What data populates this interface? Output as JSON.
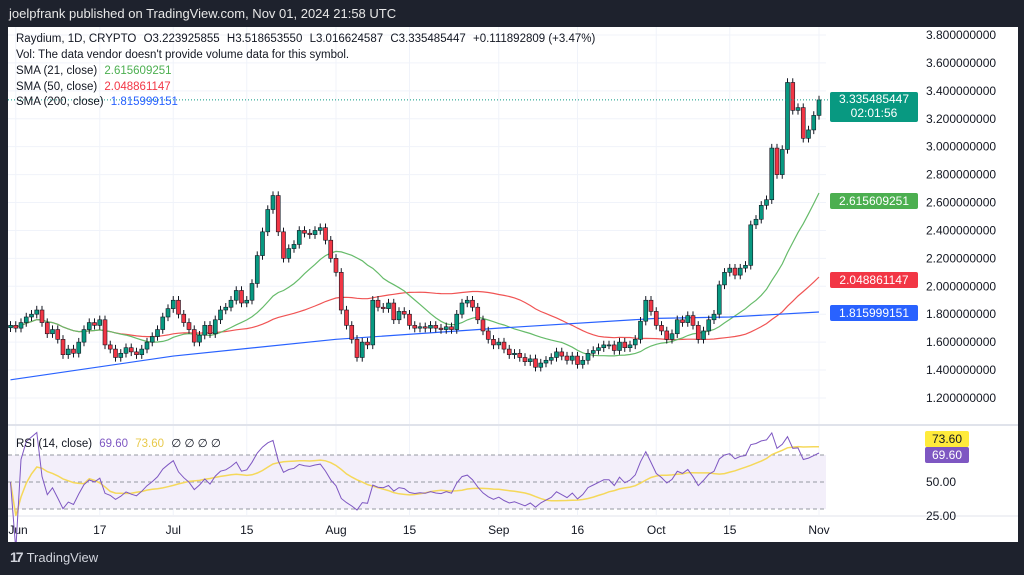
{
  "topbar": {
    "published": "joelpfrank published on TradingView.com, Nov 01, 2024 21:58 UTC"
  },
  "legend": {
    "symbol": "Raydium, 1D, CRYPTO",
    "open": "O3.223925855",
    "high": "H3.518653550",
    "low": "L3.016624587",
    "close": "C3.335485447",
    "change": "+0.111892809 (+3.47%)",
    "vol_note": "Vol: The data vendor doesn't provide volume data for this symbol.",
    "sma21": {
      "label": "SMA (21, close)",
      "value": "2.615609251",
      "color": "#4caf50"
    },
    "sma50": {
      "label": "SMA (50, close)",
      "value": "2.048861147",
      "color": "#f23645"
    },
    "sma200": {
      "label": "SMA (200, close)",
      "value": "1.815999151",
      "color": "#2962ff"
    }
  },
  "price_axis": {
    "ticks": [
      "3.800000000",
      "3.600000000",
      "3.400000000",
      "3.200000000",
      "3.000000000",
      "2.800000000",
      "2.600000000",
      "2.400000000",
      "2.200000000",
      "2.000000000",
      "1.800000000",
      "1.600000000",
      "1.400000000",
      "1.200000000"
    ],
    "current_price": "3.335485447",
    "countdown": "02:01:56",
    "sma21_tag": "2.615609251",
    "sma50_tag": "2.048861147",
    "sma200_tag": "1.815999151"
  },
  "rsi": {
    "label": "RSI (14, close)",
    "value": "69.60",
    "ma_value": "73.60",
    "extras": "∅ ∅ ∅ ∅",
    "ticks": [
      "50.00",
      "25.00"
    ],
    "color": "#7e57c2",
    "ma_color": "#f5d85a"
  },
  "time_axis": [
    {
      "label": "Jun",
      "date": "2024-06-01"
    },
    {
      "label": "17",
      "date": "2024-06-17"
    },
    {
      "label": "Jul",
      "date": "2024-07-01"
    },
    {
      "label": "15",
      "date": "2024-07-15"
    },
    {
      "label": "Aug",
      "date": "2024-08-01"
    },
    {
      "label": "15",
      "date": "2024-08-15"
    },
    {
      "label": "Sep",
      "date": "2024-09-01"
    },
    {
      "label": "16",
      "date": "2024-09-16"
    },
    {
      "label": "Oct",
      "date": "2024-10-01"
    },
    {
      "label": "15",
      "date": "2024-10-15"
    },
    {
      "label": "Nov",
      "date": "2024-11-01"
    }
  ],
  "colors": {
    "up": "#089981",
    "down": "#f23645",
    "background": "#1e222d"
  },
  "chart_data": {
    "type": "candlestick",
    "symbol": "Raydium",
    "interval": "1D",
    "ylim": [
      1.1,
      3.85
    ],
    "daily_close": [
      {
        "month": "2024-05",
        "first_day": 31,
        "close": [
          1.72
        ]
      },
      {
        "month": "2024-06",
        "first_day": 1,
        "close": [
          1.7,
          1.74,
          1.78,
          1.8,
          1.83,
          1.74,
          1.66,
          1.69,
          1.62,
          1.51,
          1.55,
          1.52,
          1.6,
          1.69,
          1.74,
          1.72,
          1.76,
          1.58,
          1.55,
          1.49,
          1.52,
          1.56,
          1.53,
          1.51,
          1.55,
          1.6,
          1.64,
          1.69,
          1.78,
          1.84
        ]
      },
      {
        "month": "2024-07",
        "first_day": 1,
        "close": [
          1.9,
          1.8,
          1.74,
          1.69,
          1.6,
          1.65,
          1.72,
          1.66,
          1.76,
          1.83,
          1.85,
          1.9,
          1.97,
          1.88,
          1.9,
          2.02,
          2.22,
          2.39,
          2.55,
          2.65,
          2.39,
          2.2,
          2.27,
          2.3,
          2.4,
          2.38,
          2.37,
          2.4,
          2.42,
          2.33,
          2.2
        ]
      },
      {
        "month": "2024-08",
        "first_day": 1,
        "close": [
          2.1,
          1.83,
          1.72,
          1.62,
          1.49,
          1.6,
          1.58,
          1.9,
          1.85,
          1.84,
          1.88,
          1.76,
          1.82,
          1.8,
          1.72,
          1.7,
          1.71,
          1.7,
          1.72,
          1.7,
          1.69,
          1.71,
          1.69,
          1.8,
          1.88,
          1.9,
          1.85,
          1.76,
          1.68,
          1.62,
          1.58
        ]
      },
      {
        "month": "2024-09",
        "first_day": 1,
        "close": [
          1.6,
          1.55,
          1.51,
          1.52,
          1.49,
          1.46,
          1.48,
          1.42,
          1.45,
          1.47,
          1.49,
          1.53,
          1.5,
          1.47,
          1.5,
          1.44,
          1.47,
          1.52,
          1.54,
          1.56,
          1.58,
          1.58,
          1.54,
          1.6,
          1.56,
          1.58,
          1.62,
          1.75,
          1.9,
          1.82
        ]
      },
      {
        "month": "2024-10",
        "first_day": 1,
        "close": [
          1.72,
          1.68,
          1.62,
          1.66,
          1.76,
          1.74,
          1.79,
          1.72,
          1.62,
          1.68,
          1.76,
          1.8,
          2.01,
          2.1,
          2.13,
          2.08,
          2.13,
          2.15,
          2.44,
          2.48,
          2.58,
          2.62,
          2.99,
          2.8,
          2.98,
          3.46,
          3.26,
          3.28,
          3.06,
          3.12,
          3.224
        ]
      },
      {
        "month": "2024-11",
        "first_day": 1,
        "close": [
          3.335
        ]
      }
    ],
    "sma200": [
      {
        "date": "2024-05-31",
        "value": 1.33
      },
      {
        "date": "2024-07-01",
        "value": 1.5
      },
      {
        "date": "2024-08-01",
        "value": 1.62
      },
      {
        "date": "2024-09-01",
        "value": 1.7
      },
      {
        "date": "2024-10-01",
        "value": 1.77
      },
      {
        "date": "2024-10-15",
        "value": 1.78
      },
      {
        "date": "2024-11-01",
        "value": 1.816
      }
    ],
    "rsi_levels": [
      70,
      50,
      30
    ]
  }
}
